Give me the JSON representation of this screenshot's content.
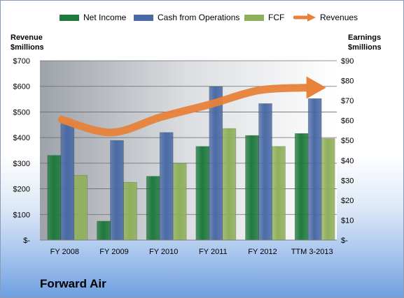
{
  "chart_data": {
    "type": "bar",
    "title": "Forward Air",
    "categories": [
      "FY 2008",
      "FY 2009",
      "FY 2010",
      "FY 2011",
      "FY 2012",
      "TTM 3-2013"
    ],
    "left_axis": {
      "label_line1": "Revenue",
      "label_line2": "$millions",
      "ylim": [
        0,
        700
      ],
      "ticks": [
        "$-",
        "$100",
        "$200",
        "$300",
        "$400",
        "$500",
        "$600",
        "$700"
      ]
    },
    "right_axis": {
      "label_line1": "Earnings",
      "label_line2": "$millions",
      "ylim": [
        0,
        90
      ],
      "ticks": [
        "$-",
        "$10",
        "$20",
        "$30",
        "$40",
        "$50",
        "$60",
        "$70",
        "$80",
        "$90"
      ]
    },
    "series": [
      {
        "name": "Net Income",
        "axis": "right",
        "kind": "bar",
        "color": "#1f7a3e",
        "values": [
          42.5,
          9.5,
          32,
          47,
          52.5,
          53.5
        ]
      },
      {
        "name": "Cash from Operations",
        "axis": "right",
        "kind": "bar",
        "color": "#4a6aa5",
        "values": [
          59,
          50,
          54,
          77,
          68.5,
          71
        ]
      },
      {
        "name": "FCF",
        "axis": "right",
        "kind": "bar",
        "color": "#8fb05a",
        "values": [
          32.5,
          29,
          38.5,
          56,
          47,
          51
        ]
      },
      {
        "name": "Revenues",
        "axis": "left",
        "kind": "line",
        "color": "#e8823a",
        "values": [
          470,
          420,
          480,
          530,
          585,
          595
        ]
      }
    ],
    "grid": true,
    "legend": "top"
  }
}
